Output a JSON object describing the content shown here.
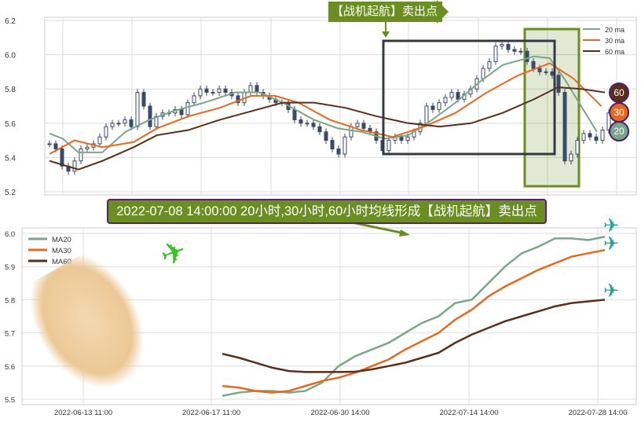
{
  "top_annotation": "【战机起航】卖出点",
  "banner": "2022-07-08 14:00:00 20小时,30小时,60小时均线形成【战机起航】卖出点",
  "badges": [
    "60",
    "30",
    "20"
  ],
  "colors": {
    "ma20": "#7aa68a",
    "ma30": "#e8681e",
    "ma60": "#5a2f1a",
    "signal": "#6b8e23",
    "box": "#333a40",
    "candle": "#3a4a6a"
  },
  "chart_data": [
    {
      "type": "candlestick",
      "title": "",
      "ylim": [
        5.2,
        6.2
      ],
      "yticks": [
        "5.2",
        "5.4",
        "5.6",
        "5.8",
        "6.0",
        "6.2"
      ],
      "grid": true,
      "legend": "top-right",
      "closes": [
        5.48,
        5.45,
        5.35,
        5.32,
        5.38,
        5.45,
        5.46,
        5.48,
        5.52,
        5.58,
        5.6,
        5.6,
        5.62,
        5.58,
        5.78,
        5.7,
        5.58,
        5.64,
        5.66,
        5.66,
        5.68,
        5.65,
        5.72,
        5.76,
        5.8,
        5.78,
        5.78,
        5.8,
        5.78,
        5.76,
        5.72,
        5.78,
        5.82,
        5.78,
        5.76,
        5.74,
        5.72,
        5.72,
        5.68,
        5.62,
        5.6,
        5.6,
        5.58,
        5.55,
        5.5,
        5.45,
        5.42,
        5.52,
        5.58,
        5.6,
        5.57,
        5.55,
        5.5,
        5.44,
        5.5,
        5.52,
        5.5,
        5.52,
        5.55,
        5.6,
        5.7,
        5.68,
        5.72,
        5.75,
        5.78,
        5.74,
        5.77,
        5.8,
        5.86,
        5.92,
        5.96,
        6.05,
        6.06,
        6.03,
        6.02,
        6.02,
        5.96,
        5.92,
        5.9,
        5.9,
        5.88,
        5.78,
        5.38,
        5.42,
        5.5,
        5.54,
        5.52,
        5.5,
        5.56,
        5.66
      ],
      "series": [
        {
          "name": "20 ma",
          "points": [
            [
              0,
              5.54
            ],
            [
              2.1,
              5.51
            ],
            [
              4.6,
              5.43
            ],
            [
              8.4,
              5.43
            ],
            [
              12.1,
              5.55
            ],
            [
              15.9,
              5.62
            ],
            [
              19.6,
              5.67
            ],
            [
              24.6,
              5.72
            ],
            [
              29.6,
              5.78
            ],
            [
              33.4,
              5.78
            ],
            [
              37.1,
              5.72
            ],
            [
              42.1,
              5.62
            ],
            [
              45.9,
              5.57
            ],
            [
              49.6,
              5.55
            ],
            [
              53.4,
              5.51
            ],
            [
              57.1,
              5.53
            ],
            [
              60.9,
              5.62
            ],
            [
              64.6,
              5.72
            ],
            [
              68.4,
              5.84
            ],
            [
              72.1,
              5.94
            ],
            [
              77.1,
              5.99
            ],
            [
              79.6,
              5.98
            ],
            [
              82.1,
              5.85
            ],
            [
              87.1,
              5.55
            ]
          ]
        },
        {
          "name": "30 ma",
          "points": [
            [
              0,
              5.42
            ],
            [
              4,
              5.5
            ],
            [
              8.4,
              5.46
            ],
            [
              13.4,
              5.49
            ],
            [
              17.1,
              5.57
            ],
            [
              22.1,
              5.64
            ],
            [
              27.1,
              5.69
            ],
            [
              32.1,
              5.76
            ],
            [
              35.9,
              5.76
            ],
            [
              39.6,
              5.72
            ],
            [
              44.6,
              5.62
            ],
            [
              49.6,
              5.56
            ],
            [
              54.6,
              5.52
            ],
            [
              59.6,
              5.58
            ],
            [
              64.6,
              5.66
            ],
            [
              69.6,
              5.78
            ],
            [
              74.6,
              5.88
            ],
            [
              79.6,
              5.95
            ],
            [
              83.4,
              5.86
            ],
            [
              87.8,
              5.7
            ]
          ]
        },
        {
          "name": "60 ma",
          "points": [
            [
              0,
              5.38
            ],
            [
              4.6,
              5.33
            ],
            [
              8.4,
              5.38
            ],
            [
              13.4,
              5.46
            ],
            [
              17.1,
              5.53
            ],
            [
              22.1,
              5.56
            ],
            [
              27.1,
              5.62
            ],
            [
              32.1,
              5.67
            ],
            [
              37.1,
              5.72
            ],
            [
              42.1,
              5.72
            ],
            [
              47.1,
              5.69
            ],
            [
              52.1,
              5.64
            ],
            [
              57.1,
              5.6
            ],
            [
              62.1,
              5.58
            ],
            [
              67.1,
              5.6
            ],
            [
              72.1,
              5.66
            ],
            [
              77.1,
              5.74
            ],
            [
              80.9,
              5.81
            ],
            [
              84.6,
              5.8
            ],
            [
              88.4,
              5.78
            ]
          ]
        }
      ]
    },
    {
      "type": "line",
      "title": "",
      "ylim": [
        5.49,
        6.01
      ],
      "yticks": [
        "5.5",
        "5.6",
        "5.7",
        "5.8",
        "5.9",
        "6.0"
      ],
      "xticks": [
        "2022-06-13 11:00",
        "2022-06-17 11:00",
        "2022-06-30 14:00",
        "2022-07-14 14:00",
        "2022-07-28 14:00"
      ],
      "grid": true,
      "legend": "top-left",
      "series": [
        {
          "name": "MA20",
          "values": [
            5.51,
            5.52,
            5.525,
            5.525,
            5.52,
            5.525,
            5.55,
            5.6,
            5.63,
            5.65,
            5.67,
            5.7,
            5.73,
            5.75,
            5.79,
            5.8,
            5.85,
            5.9,
            5.94,
            5.96,
            5.985,
            5.985,
            5.98,
            5.99
          ]
        },
        {
          "name": "MA30",
          "values": [
            5.54,
            5.535,
            5.525,
            5.52,
            5.525,
            5.54,
            5.555,
            5.565,
            5.58,
            5.6,
            5.62,
            5.65,
            5.675,
            5.7,
            5.74,
            5.77,
            5.81,
            5.84,
            5.865,
            5.89,
            5.91,
            5.93,
            5.94,
            5.95
          ]
        },
        {
          "name": "MA60",
          "values": [
            5.637,
            5.625,
            5.61,
            5.595,
            5.585,
            5.582,
            5.582,
            5.582,
            5.583,
            5.59,
            5.6,
            5.61,
            5.625,
            5.64,
            5.67,
            5.695,
            5.715,
            5.735,
            5.75,
            5.765,
            5.78,
            5.79,
            5.795,
            5.8
          ]
        }
      ]
    }
  ]
}
